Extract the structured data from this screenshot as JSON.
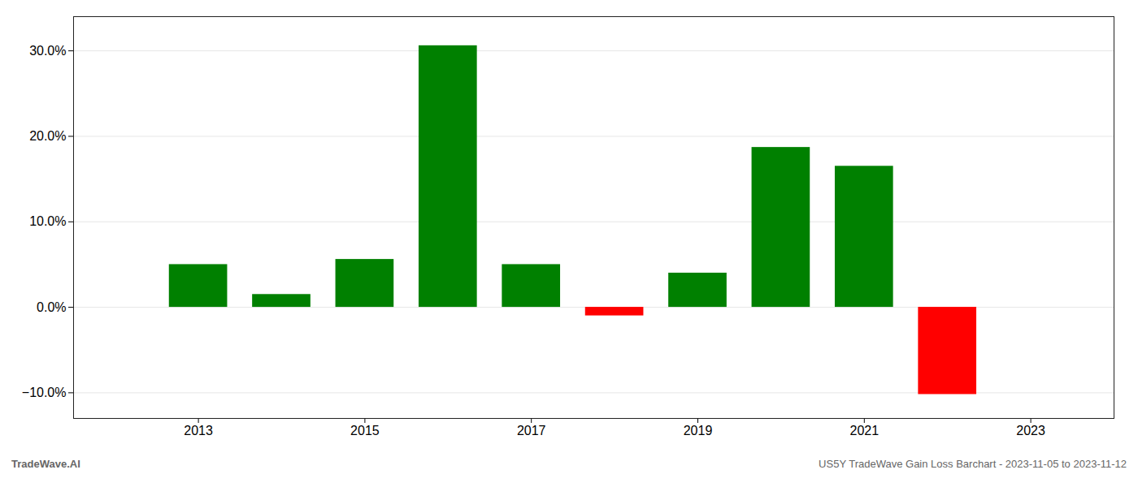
{
  "chart_data": {
    "type": "bar",
    "x": [
      2013,
      2014,
      2015,
      2016,
      2017,
      2018,
      2019,
      2020,
      2021,
      2022
    ],
    "values": [
      5.0,
      1.5,
      5.6,
      30.6,
      5.0,
      -1.0,
      4.0,
      18.7,
      16.5,
      -10.2
    ],
    "colors": [
      "#008000",
      "#008000",
      "#008000",
      "#008000",
      "#008000",
      "#ff0000",
      "#008000",
      "#008000",
      "#008000",
      "#ff0000"
    ],
    "xlim": [
      2011.5,
      2024.0
    ],
    "xticks": [
      2013,
      2015,
      2017,
      2019,
      2021,
      2023
    ],
    "ylim": [
      -13,
      34
    ],
    "yticks": [
      {
        "value": -10.0,
        "label": "−10.0%"
      },
      {
        "value": 0.0,
        "label": "0.0%"
      },
      {
        "value": 10.0,
        "label": "10.0%"
      },
      {
        "value": 20.0,
        "label": "20.0%"
      },
      {
        "value": 30.0,
        "label": "30.0%"
      }
    ],
    "grid": true,
    "annotations": [
      "TradeWave.AI",
      "US5Y TradeWave Gain Loss Barchart - 2023-11-05 to 2023-11-12"
    ]
  }
}
